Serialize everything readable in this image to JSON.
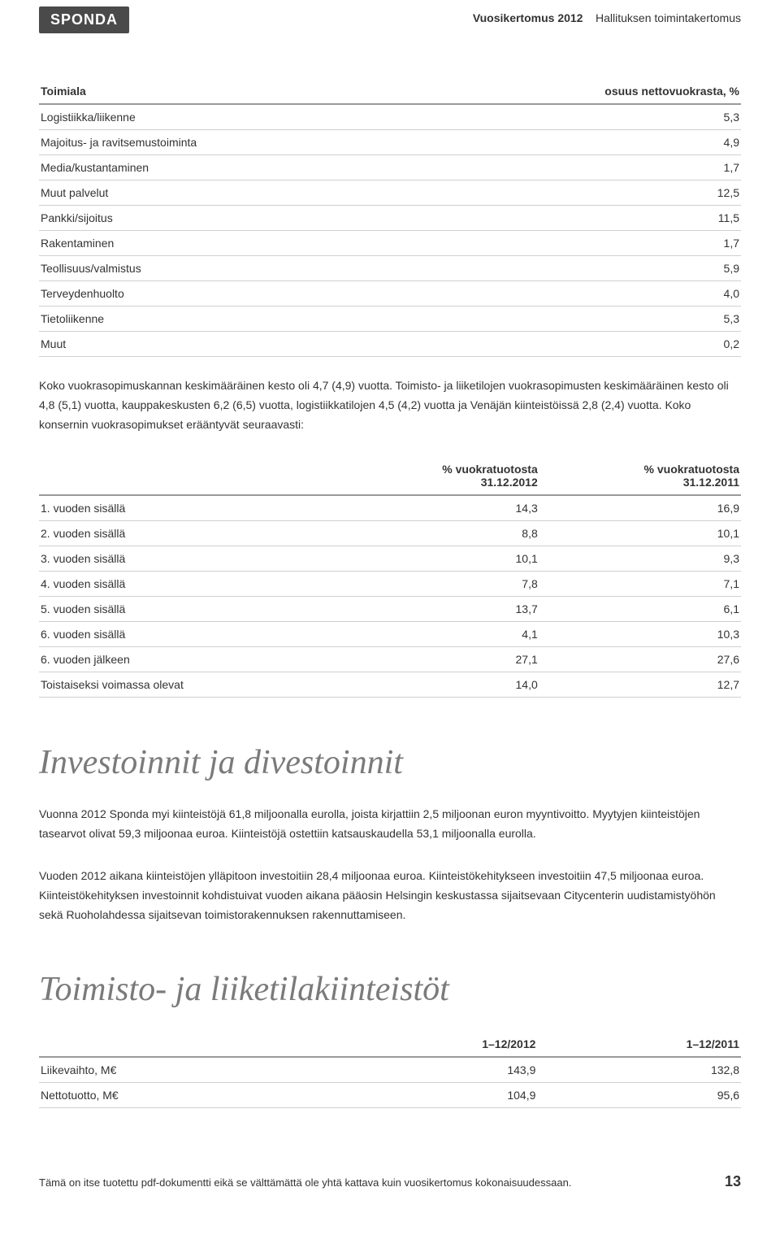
{
  "header": {
    "logo": "SPONDA",
    "annual": "Vuosikertomus 2012",
    "section": "Hallituksen toimintakertomus"
  },
  "table1": {
    "col_label": "Toimiala",
    "col_value": "osuus nettovuokrasta, %",
    "rows": [
      {
        "label": "Logistiikka/liikenne",
        "value": "5,3"
      },
      {
        "label": "Majoitus- ja ravitsemustoiminta",
        "value": "4,9"
      },
      {
        "label": "Media/kustantaminen",
        "value": "1,7"
      },
      {
        "label": "Muut palvelut",
        "value": "12,5"
      },
      {
        "label": "Pankki/sijoitus",
        "value": "11,5"
      },
      {
        "label": "Rakentaminen",
        "value": "1,7"
      },
      {
        "label": "Teollisuus/valmistus",
        "value": "5,9"
      },
      {
        "label": "Terveydenhuolto",
        "value": "4,0"
      },
      {
        "label": "Tietoliikenne",
        "value": "5,3"
      },
      {
        "label": "Muut",
        "value": "0,2"
      }
    ]
  },
  "paragraph1": "Koko vuokrasopimuskannan keskimääräinen kesto oli 4,7 (4,9) vuotta. Toimisto- ja liiketilojen vuokrasopimusten keskimääräinen kesto oli 4,8 (5,1) vuotta, kauppakeskusten 6,2 (6,5) vuotta, logistiikkatilojen 4,5 (4,2) vuotta ja Venäjän kiinteistöissä 2,8 (2,4) vuotta. Koko konsernin vuokrasopimukset erääntyvät seuraavasti:",
  "table2": {
    "col2_l1": "% vuokratuotosta",
    "col2_l2": "31.12.2012",
    "col3_l1": "% vuokratuotosta",
    "col3_l2": "31.12.2011",
    "rows": [
      {
        "label": "1. vuoden sisällä",
        "v1": "14,3",
        "v2": "16,9"
      },
      {
        "label": "2. vuoden sisällä",
        "v1": "8,8",
        "v2": "10,1"
      },
      {
        "label": "3. vuoden sisällä",
        "v1": "10,1",
        "v2": "9,3"
      },
      {
        "label": "4. vuoden sisällä",
        "v1": "7,8",
        "v2": "7,1"
      },
      {
        "label": "5. vuoden sisällä",
        "v1": "13,7",
        "v2": "6,1"
      },
      {
        "label": "6. vuoden sisällä",
        "v1": "4,1",
        "v2": "10,3"
      },
      {
        "label": "6. vuoden jälkeen",
        "v1": "27,1",
        "v2": "27,6"
      },
      {
        "label": "Toistaiseksi voimassa olevat",
        "v1": "14,0",
        "v2": "12,7"
      }
    ]
  },
  "heading_invest": "Investoinnit ja divestoinnit",
  "paragraph_invest1": "Vuonna 2012 Sponda myi kiinteistöjä 61,8 miljoonalla eurolla, joista kirjattiin 2,5 miljoonan euron myyntivoitto. Myytyjen kiinteistöjen tasearvot olivat 59,3 miljoonaa euroa. Kiinteistöjä ostettiin katsauskaudella 53,1 miljoonalla eurolla.",
  "paragraph_invest2": "Vuoden 2012 aikana kiinteistöjen ylläpitoon investoitiin 28,4 miljoonaa euroa. Kiinteistökehitykseen investoitiin 47,5 miljoonaa euroa. Kiinteistökehityksen investoinnit kohdistuivat vuoden aikana pääosin Helsingin keskustassa sijaitsevaan Citycenterin uudistamistyöhön sekä Ruoholahdessa sijaitsevan toimistorakennuksen rakennuttamiseen.",
  "heading_toimisto": "Toimisto- ja liiketilakiinteistöt",
  "table3": {
    "col2": "1–12/2012",
    "col3": "1–12/2011",
    "rows": [
      {
        "label": "Liikevaihto, M€",
        "v1": "143,9",
        "v2": "132,8"
      },
      {
        "label": "Nettotuotto, M€",
        "v1": "104,9",
        "v2": "95,6"
      }
    ]
  },
  "footer": {
    "note": "Tämä on itse tuotettu pdf-dokumentti eikä se välttämättä ole yhtä kattava kuin vuosikertomus kokonaisuudessaan.",
    "page": "13"
  }
}
